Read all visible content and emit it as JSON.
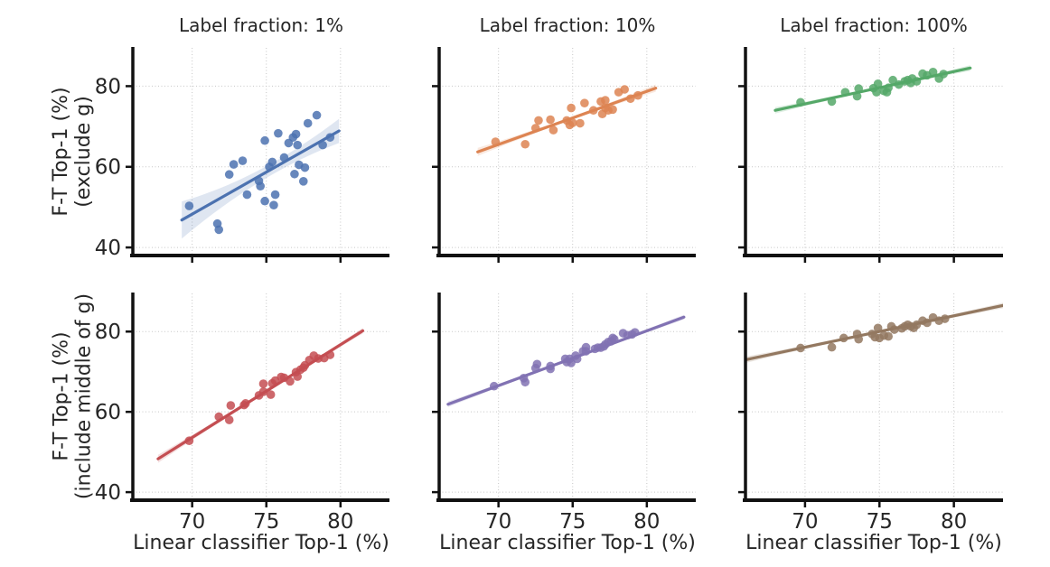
{
  "figure": {
    "background": "#ffffff",
    "text_color": "#262626",
    "grid_color": "#c7c7c7",
    "spine_color": "#111111"
  },
  "axes": {
    "xlim": [
      66,
      83.3
    ],
    "ylim": [
      38,
      89.5
    ],
    "xticks": [
      70,
      75,
      80
    ],
    "yticks": [
      40,
      60,
      80
    ],
    "xlabel": "Linear classifier Top-1 (%)",
    "col_titles": [
      "Label fraction: 1%",
      "Label fraction: 10%",
      "Label fraction: 100%"
    ],
    "row_ylabels": [
      [
        "F-T Top-1 (%)",
        "(exclude g)"
      ],
      [
        "F-T Top-1 (%)",
        "(include middle of g)"
      ]
    ],
    "grid": "dotted"
  },
  "chart_data": [
    {
      "type": "scatter",
      "panel": "top-left",
      "title": "Label fraction: 1%",
      "ylabel": [
        "F-T Top-1 (%)",
        "(exclude g)"
      ],
      "color": "#4c72b0",
      "points": [
        [
          69.8,
          50.3
        ],
        [
          71.7,
          45.9
        ],
        [
          71.8,
          44.4
        ],
        [
          72.5,
          58.1
        ],
        [
          72.8,
          60.6
        ],
        [
          73.4,
          61.5
        ],
        [
          73.7,
          53.1
        ],
        [
          74.5,
          56.5
        ],
        [
          74.6,
          55.2
        ],
        [
          74.9,
          66.5
        ],
        [
          74.9,
          51.5
        ],
        [
          75.2,
          60.0
        ],
        [
          75.4,
          61.2
        ],
        [
          75.5,
          50.5
        ],
        [
          75.6,
          53.1
        ],
        [
          75.8,
          68.3
        ],
        [
          76.2,
          62.3
        ],
        [
          76.5,
          65.9
        ],
        [
          76.8,
          67.3
        ],
        [
          76.9,
          58.2
        ],
        [
          77.0,
          68.1
        ],
        [
          77.1,
          65.4
        ],
        [
          77.2,
          60.5
        ],
        [
          77.5,
          56.4
        ],
        [
          77.6,
          59.8
        ],
        [
          77.8,
          70.8
        ],
        [
          78.4,
          72.8
        ],
        [
          78.8,
          65.4
        ],
        [
          79.3,
          67.3
        ]
      ],
      "trend": {
        "x": [
          69.3,
          79.9
        ],
        "y": [
          46.8,
          68.9
        ]
      },
      "ci_halfwidth": [
        4.6,
        1.5,
        3.0
      ]
    },
    {
      "type": "scatter",
      "panel": "top-middle",
      "title": "Label fraction: 10%",
      "ylabel": [
        "F-T Top-1 (%)",
        "(exclude g)"
      ],
      "color": "#dd8452",
      "points": [
        [
          69.8,
          66.2
        ],
        [
          71.8,
          65.6
        ],
        [
          72.5,
          69.6
        ],
        [
          72.7,
          71.5
        ],
        [
          73.5,
          71.7
        ],
        [
          73.7,
          69.1
        ],
        [
          74.6,
          71.5
        ],
        [
          74.8,
          70.4
        ],
        [
          74.9,
          74.6
        ],
        [
          75.0,
          70.9
        ],
        [
          75.5,
          70.8
        ],
        [
          75.8,
          75.8
        ],
        [
          76.4,
          74.0
        ],
        [
          76.9,
          76.2
        ],
        [
          77.0,
          73.1
        ],
        [
          77.2,
          76.5
        ],
        [
          77.2,
          74.6
        ],
        [
          77.4,
          74.0
        ],
        [
          77.7,
          74.2
        ],
        [
          78.1,
          78.5
        ],
        [
          78.5,
          79.2
        ],
        [
          78.9,
          76.9
        ],
        [
          79.4,
          77.7
        ]
      ],
      "trend": {
        "x": [
          68.6,
          80.6
        ],
        "y": [
          63.7,
          79.5
        ]
      },
      "ci_halfwidth": [
        1.0,
        0.4,
        0.9
      ]
    },
    {
      "type": "scatter",
      "panel": "top-right",
      "title": "Label fraction: 100%",
      "ylabel": [
        "F-T Top-1 (%)",
        "(exclude g)"
      ],
      "color": "#55a868",
      "points": [
        [
          69.7,
          76.0
        ],
        [
          71.8,
          76.2
        ],
        [
          72.7,
          78.5
        ],
        [
          73.5,
          77.5
        ],
        [
          73.6,
          79.4
        ],
        [
          74.6,
          79.5
        ],
        [
          74.8,
          78.5
        ],
        [
          74.9,
          80.6
        ],
        [
          75.3,
          78.8
        ],
        [
          75.5,
          78.5
        ],
        [
          75.6,
          79.6
        ],
        [
          75.9,
          81.5
        ],
        [
          76.3,
          80.4
        ],
        [
          76.7,
          81.2
        ],
        [
          76.9,
          81.5
        ],
        [
          77.1,
          80.8
        ],
        [
          77.2,
          81.9
        ],
        [
          77.5,
          81.2
        ],
        [
          77.9,
          83.1
        ],
        [
          78.2,
          82.7
        ],
        [
          78.6,
          83.5
        ],
        [
          79.0,
          81.9
        ],
        [
          79.3,
          83.0
        ]
      ],
      "trend": {
        "x": [
          68.0,
          81.1
        ],
        "y": [
          74.0,
          84.5
        ]
      },
      "ci_halfwidth": [
        0.8,
        0.3,
        0.7
      ]
    },
    {
      "type": "scatter",
      "panel": "bottom-left",
      "title": "",
      "ylabel": [
        "F-T Top-1 (%)",
        "(include middle of g)"
      ],
      "color": "#c44e52",
      "points": [
        [
          69.8,
          52.8
        ],
        [
          71.8,
          58.8
        ],
        [
          72.5,
          58.0
        ],
        [
          72.6,
          61.6
        ],
        [
          73.5,
          61.7
        ],
        [
          73.6,
          62.1
        ],
        [
          74.5,
          64.1
        ],
        [
          74.8,
          67.0
        ],
        [
          74.8,
          65.0
        ],
        [
          75.3,
          64.3
        ],
        [
          75.4,
          67.1
        ],
        [
          75.6,
          67.8
        ],
        [
          76.0,
          68.7
        ],
        [
          76.2,
          68.5
        ],
        [
          76.6,
          67.6
        ],
        [
          77.0,
          69.9
        ],
        [
          77.1,
          68.8
        ],
        [
          77.3,
          70.5
        ],
        [
          77.5,
          71.0
        ],
        [
          77.6,
          71.6
        ],
        [
          77.9,
          72.9
        ],
        [
          78.2,
          74.0
        ],
        [
          78.5,
          73.3
        ],
        [
          78.9,
          73.4
        ],
        [
          79.3,
          74.2
        ]
      ],
      "trend": {
        "x": [
          67.7,
          81.5
        ],
        "y": [
          48.3,
          80.2
        ]
      },
      "ci_halfwidth": [
        1.0,
        0.3,
        0.7
      ]
    },
    {
      "type": "scatter",
      "panel": "bottom-middle",
      "title": "",
      "ylabel": [
        "F-T Top-1 (%)",
        "(include middle of g)"
      ],
      "color": "#8172b3",
      "points": [
        [
          69.7,
          66.4
        ],
        [
          71.7,
          68.4
        ],
        [
          71.8,
          67.4
        ],
        [
          72.5,
          70.9
        ],
        [
          72.6,
          71.9
        ],
        [
          73.5,
          71.4
        ],
        [
          73.5,
          70.7
        ],
        [
          74.5,
          73.2
        ],
        [
          74.6,
          72.4
        ],
        [
          74.8,
          73.2
        ],
        [
          74.9,
          72.2
        ],
        [
          75.2,
          74.0
        ],
        [
          75.3,
          73.2
        ],
        [
          75.7,
          75.1
        ],
        [
          75.9,
          76.1
        ],
        [
          75.9,
          75.1
        ],
        [
          76.5,
          75.7
        ],
        [
          76.7,
          76.0
        ],
        [
          76.9,
          76.0
        ],
        [
          77.1,
          76.3
        ],
        [
          77.2,
          76.8
        ],
        [
          77.4,
          77.4
        ],
        [
          77.6,
          77.6
        ],
        [
          77.7,
          78.4
        ],
        [
          77.8,
          78.1
        ],
        [
          78.4,
          79.6
        ],
        [
          78.7,
          79.1
        ],
        [
          79.0,
          79.3
        ],
        [
          79.2,
          79.8
        ]
      ],
      "trend": {
        "x": [
          66.6,
          82.5
        ],
        "y": [
          61.9,
          83.6
        ]
      },
      "ci_halfwidth": [
        0.7,
        0.3,
        0.6
      ]
    },
    {
      "type": "scatter",
      "panel": "bottom-right",
      "title": "",
      "ylabel": [
        "F-T Top-1 (%)",
        "(include middle of g)"
      ],
      "color": "#937860",
      "points": [
        [
          69.7,
          75.9
        ],
        [
          71.8,
          76.1
        ],
        [
          72.6,
          78.4
        ],
        [
          73.5,
          79.4
        ],
        [
          73.6,
          78.1
        ],
        [
          74.5,
          79.4
        ],
        [
          74.7,
          78.6
        ],
        [
          74.9,
          80.9
        ],
        [
          75.0,
          78.4
        ],
        [
          75.3,
          79.0
        ],
        [
          75.6,
          78.8
        ],
        [
          75.8,
          81.3
        ],
        [
          76.0,
          80.5
        ],
        [
          76.5,
          80.8
        ],
        [
          76.7,
          81.3
        ],
        [
          76.9,
          81.7
        ],
        [
          77.1,
          81.3
        ],
        [
          77.3,
          80.9
        ],
        [
          77.5,
          81.7
        ],
        [
          77.9,
          82.7
        ],
        [
          78.2,
          82.2
        ],
        [
          78.6,
          83.5
        ],
        [
          79.0,
          82.7
        ],
        [
          79.4,
          83.2
        ]
      ],
      "trend": {
        "x": [
          65.9,
          83.3
        ],
        "y": [
          72.9,
          86.5
        ]
      },
      "ci_halfwidth": [
        0.8,
        0.3,
        0.7
      ]
    }
  ]
}
